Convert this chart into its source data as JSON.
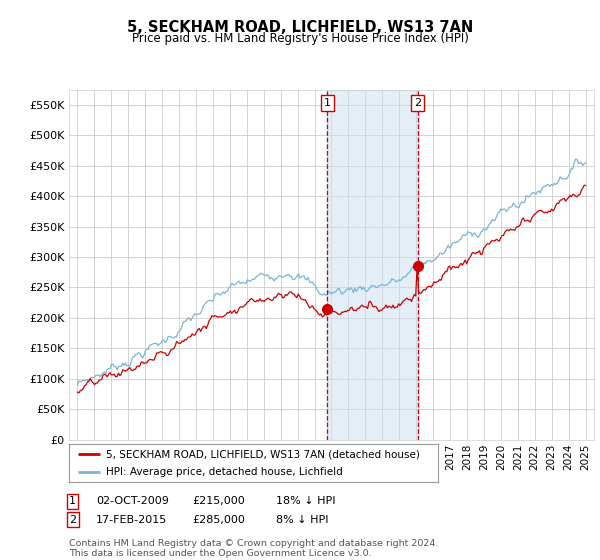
{
  "title": "5, SECKHAM ROAD, LICHFIELD, WS13 7AN",
  "subtitle": "Price paid vs. HM Land Registry's House Price Index (HPI)",
  "ylim": [
    0,
    575000
  ],
  "yticks": [
    0,
    50000,
    100000,
    150000,
    200000,
    250000,
    300000,
    350000,
    400000,
    450000,
    500000,
    550000
  ],
  "ytick_labels": [
    "£0",
    "£50K",
    "£100K",
    "£150K",
    "£200K",
    "£250K",
    "£300K",
    "£350K",
    "£400K",
    "£450K",
    "£500K",
    "£550K"
  ],
  "hpi_color": "#7ab4d8",
  "price_color": "#cc0000",
  "marker_color": "#cc0000",
  "vline_color": "#cc0000",
  "vshade_color": "#cce0f0",
  "background_color": "#ffffff",
  "plot_bg_color": "#ffffff",
  "grid_color": "#cccccc",
  "transaction1_price": 215000,
  "transaction2_price": 285000,
  "legend_entry1": "5, SECKHAM ROAD, LICHFIELD, WS13 7AN (detached house)",
  "legend_entry2": "HPI: Average price, detached house, Lichfield",
  "footer": "Contains HM Land Registry data © Crown copyright and database right 2024.\nThis data is licensed under the Open Government Licence v3.0.",
  "xlim_start": 1994.5,
  "xlim_end": 2025.5
}
